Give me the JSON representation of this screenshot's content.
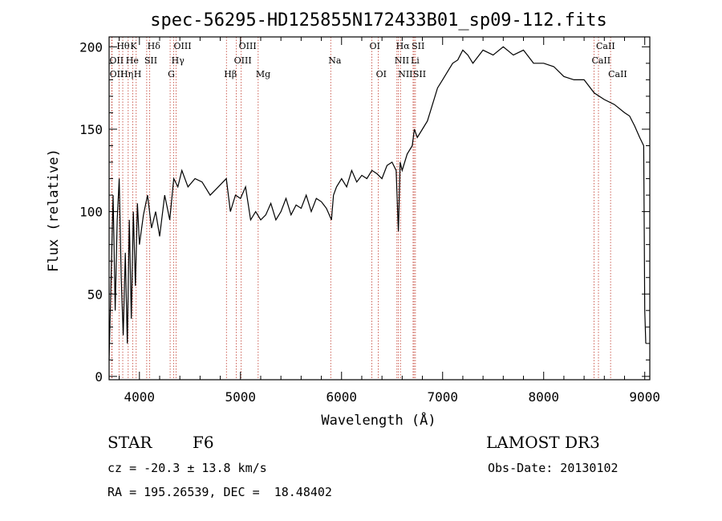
{
  "chart_data": {
    "type": "line",
    "title": "spec-56295-HD125855N172433B01_sp09-112.fits",
    "xlabel": "Wavelength (Å)",
    "ylabel": "Flux (relative)",
    "xlim": [
      3700,
      9050
    ],
    "ylim": [
      -2,
      206
    ],
    "xticks": [
      4000,
      5000,
      6000,
      7000,
      8000,
      9000
    ],
    "yticks": [
      0,
      50,
      100,
      150,
      200
    ],
    "series": [
      {
        "name": "flux",
        "x": [
          3700,
          3720,
          3740,
          3760,
          3780,
          3800,
          3820,
          3840,
          3860,
          3880,
          3900,
          3920,
          3940,
          3960,
          3980,
          4000,
          4040,
          4080,
          4120,
          4160,
          4200,
          4250,
          4300,
          4340,
          4380,
          4420,
          4480,
          4550,
          4620,
          4700,
          4780,
          4860,
          4900,
          4950,
          5000,
          5050,
          5100,
          5150,
          5200,
          5250,
          5300,
          5350,
          5400,
          5450,
          5500,
          5550,
          5600,
          5650,
          5700,
          5750,
          5800,
          5850,
          5900,
          5920,
          5950,
          6000,
          6050,
          6100,
          6150,
          6200,
          6250,
          6300,
          6350,
          6400,
          6450,
          6500,
          6540,
          6562,
          6580,
          6600,
          6650,
          6700,
          6720,
          6750,
          6800,
          6850,
          6900,
          6950,
          7000,
          7050,
          7100,
          7150,
          7200,
          7250,
          7300,
          7400,
          7500,
          7600,
          7700,
          7800,
          7900,
          8000,
          8100,
          8200,
          8300,
          8400,
          8500,
          8600,
          8700,
          8800,
          8850,
          8900,
          8950,
          8990,
          9000,
          9010
        ],
        "y": [
          10,
          60,
          110,
          40,
          95,
          120,
          60,
          25,
          75,
          20,
          95,
          35,
          100,
          55,
          105,
          80,
          98,
          110,
          90,
          100,
          85,
          110,
          95,
          120,
          115,
          125,
          115,
          120,
          118,
          110,
          115,
          120,
          100,
          110,
          108,
          115,
          95,
          100,
          95,
          98,
          105,
          95,
          100,
          108,
          98,
          104,
          102,
          110,
          100,
          108,
          106,
          102,
          95,
          110,
          115,
          120,
          115,
          125,
          118,
          122,
          120,
          125,
          123,
          120,
          128,
          130,
          125,
          88,
          130,
          125,
          135,
          140,
          150,
          145,
          150,
          155,
          165,
          175,
          180,
          185,
          190,
          192,
          198,
          195,
          190,
          198,
          195,
          200,
          195,
          198,
          190,
          190,
          188,
          182,
          180,
          180,
          172,
          168,
          165,
          160,
          158,
          152,
          145,
          140,
          40,
          20
        ]
      }
    ],
    "lines": [
      {
        "label": "Hθ",
        "row": 0,
        "x": 3798
      },
      {
        "label": "K",
        "row": 0,
        "x": 3933
      },
      {
        "label": "Hδ",
        "row": 0,
        "x": 4102
      },
      {
        "label": "OIII",
        "row": 0,
        "x": 4363
      },
      {
        "label": "OIII",
        "row": 0,
        "x": 5007
      },
      {
        "label": "OI",
        "row": 0,
        "x": 6300
      },
      {
        "label": "Hα",
        "row": 0,
        "x": 6563
      },
      {
        "label": "SII",
        "row": 0,
        "x": 6717
      },
      {
        "label": "CaII",
        "row": 0,
        "x": 8542
      },
      {
        "label": "OII",
        "row": 1,
        "x": 3727
      },
      {
        "label": "He",
        "row": 1,
        "x": 3889
      },
      {
        "label": "SII",
        "row": 1,
        "x": 4072
      },
      {
        "label": "Hγ",
        "row": 1,
        "x": 4340
      },
      {
        "label": "OIII",
        "row": 1,
        "x": 4959
      },
      {
        "label": "Na",
        "row": 1,
        "x": 5893
      },
      {
        "label": "NII",
        "row": 1,
        "x": 6548
      },
      {
        "label": "Li",
        "row": 1,
        "x": 6708
      },
      {
        "label": "CaII",
        "row": 1,
        "x": 8498
      },
      {
        "label": "OII",
        "row": 2,
        "x": 3729
      },
      {
        "label": "Hη",
        "row": 2,
        "x": 3835
      },
      {
        "label": "H",
        "row": 2,
        "x": 3968
      },
      {
        "label": "G",
        "row": 2,
        "x": 4304
      },
      {
        "label": "Hβ",
        "row": 2,
        "x": 4861
      },
      {
        "label": "Mg",
        "row": 2,
        "x": 5175
      },
      {
        "label": "OI",
        "row": 2,
        "x": 6364
      },
      {
        "label": "NII",
        "row": 2,
        "x": 6583
      },
      {
        "label": "SII",
        "row": 2,
        "x": 6731
      },
      {
        "label": "CaII",
        "row": 2,
        "x": 8662
      }
    ]
  },
  "info": {
    "class_label": "STAR",
    "subclass": "F6",
    "survey": "LAMOST DR3",
    "cz": "cz = -20.3 ± 13.8 km/s",
    "obs_date": "Obs-Date: 20130102",
    "coords": "RA = 195.26539, DEC =  18.48402"
  },
  "colors": {
    "line_marker": "#c0392b",
    "spectrum": "#000000"
  }
}
